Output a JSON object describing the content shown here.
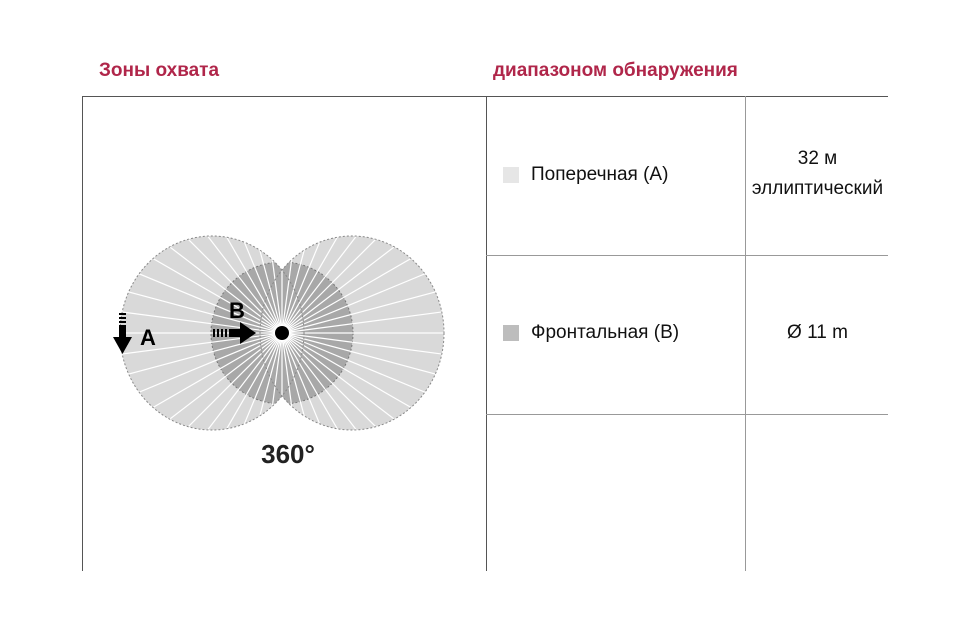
{
  "left_title": "Зоны охвата",
  "right_title": "диапазоном обнаружения",
  "diagram": {
    "label_a": "A",
    "label_b": "B",
    "angle": "360°"
  },
  "rows": [
    {
      "label": "Поперечная (A)",
      "value_line1": "32 м",
      "value_line2": "эллиптический",
      "swatch": "#e6e6e6"
    },
    {
      "label": "Фронтальная (B)",
      "value_line1": "Ø 11 m",
      "swatch": "#bdbdbd"
    }
  ],
  "colors": {
    "title": "#b0264a",
    "outer_zone": "#d9d9d9",
    "inner_zone": "#a8a8a8"
  }
}
